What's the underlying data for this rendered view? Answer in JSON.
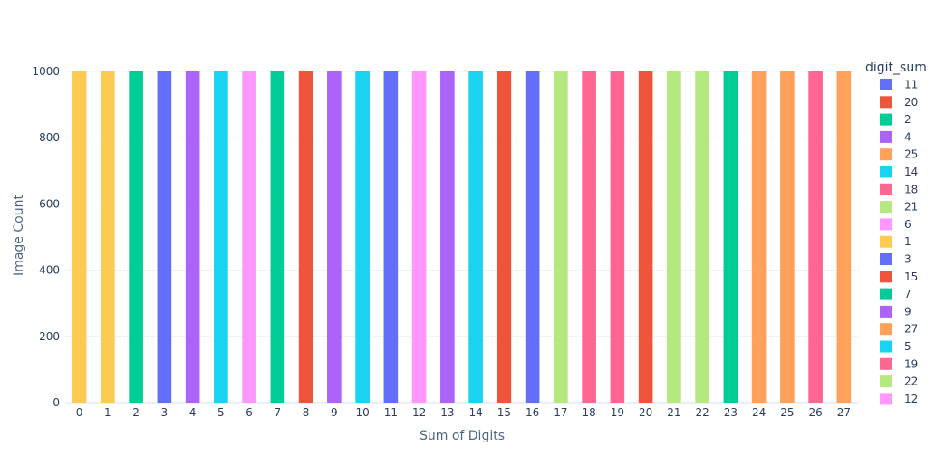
{
  "chart_data": {
    "type": "bar",
    "xlabel": "Sum of Digits",
    "ylabel": "Image Count",
    "ylim": [
      0,
      1000
    ],
    "yticks": [
      0,
      200,
      400,
      600,
      800,
      1000
    ],
    "grid": true,
    "legend_position": "right",
    "legend_title": "digit_sum",
    "categories": [
      0,
      1,
      2,
      3,
      4,
      5,
      6,
      7,
      8,
      9,
      10,
      11,
      12,
      13,
      14,
      15,
      16,
      17,
      18,
      19,
      20,
      21,
      22,
      23,
      24,
      25,
      26,
      27
    ],
    "values": [
      1000,
      1000,
      1000,
      1000,
      1000,
      1000,
      1000,
      1000,
      1000,
      1000,
      1000,
      1000,
      1000,
      1000,
      1000,
      1000,
      1000,
      1000,
      1000,
      1000,
      1000,
      1000,
      1000,
      1000,
      1000,
      1000,
      1000,
      1000
    ],
    "bar_colors": {
      "0": "#FECB52",
      "1": "#FECB52",
      "2": "#00CC96",
      "3": "#636EFA",
      "4": "#AB63FA",
      "5": "#19D3F3",
      "6": "#FF97FF",
      "7": "#00CC96",
      "8": "#EF553B",
      "9": "#AB63FA",
      "10": "#19D3F3",
      "11": "#636EFA",
      "12": "#FF97FF",
      "13": "#AB63FA",
      "14": "#19D3F3",
      "15": "#EF553B",
      "16": "#636EFA",
      "17": "#B6E880",
      "18": "#FF6692",
      "19": "#FF6692",
      "20": "#EF553B",
      "21": "#B6E880",
      "22": "#B6E880",
      "23": "#00CC96",
      "24": "#FFA15A",
      "25": "#FFA15A",
      "26": "#FF6692",
      "27": "#FFA15A"
    },
    "legend": [
      {
        "label": "11",
        "color": "#636EFA"
      },
      {
        "label": "20",
        "color": "#EF553B"
      },
      {
        "label": "2",
        "color": "#00CC96"
      },
      {
        "label": "4",
        "color": "#AB63FA"
      },
      {
        "label": "25",
        "color": "#FFA15A"
      },
      {
        "label": "14",
        "color": "#19D3F3"
      },
      {
        "label": "18",
        "color": "#FF6692"
      },
      {
        "label": "21",
        "color": "#B6E880"
      },
      {
        "label": "6",
        "color": "#FF97FF"
      },
      {
        "label": "1",
        "color": "#FECB52"
      },
      {
        "label": "3",
        "color": "#636EFA"
      },
      {
        "label": "15",
        "color": "#EF553B"
      },
      {
        "label": "7",
        "color": "#00CC96"
      },
      {
        "label": "9",
        "color": "#AB63FA"
      },
      {
        "label": "27",
        "color": "#FFA15A"
      },
      {
        "label": "5",
        "color": "#19D3F3"
      },
      {
        "label": "19",
        "color": "#FF6692"
      },
      {
        "label": "22",
        "color": "#B6E880"
      },
      {
        "label": "12",
        "color": "#FF97FF"
      }
    ]
  }
}
